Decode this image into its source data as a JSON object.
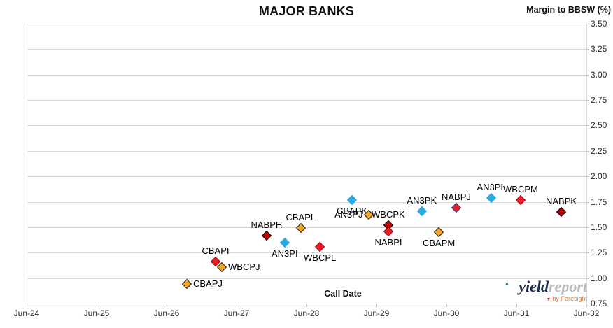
{
  "title": "MAJOR BANKS",
  "y_axis_title": "Margin to BBSW (%)",
  "x_axis_title": "Call Date",
  "logo": {
    "word_primary": "yield",
    "word_secondary": "report",
    "tagline": "by Foresight",
    "up_triangle": "▲",
    "down_triangle": "▼"
  },
  "chart_data": {
    "type": "scatter",
    "title": "MAJOR BANKS",
    "xlabel": "Call Date",
    "ylabel": "Margin to BBSW (%)",
    "x_tick_labels": [
      "Jun-24",
      "Jun-25",
      "Jun-26",
      "Jun-27",
      "Jun-28",
      "Jun-29",
      "Jun-30",
      "Jun-31",
      "Jun-32"
    ],
    "y_tick_labels": [
      "3.50",
      "3.25",
      "3.00",
      "2.75",
      "2.50",
      "2.25",
      "2.00",
      "1.75",
      "1.50",
      "1.25",
      "1.00",
      "0.75"
    ],
    "ylim": [
      0.75,
      3.5
    ],
    "x_years_after_jun24_range": [
      0,
      8
    ],
    "grid": "horizontal-only",
    "legend": "none",
    "marker": "diamond",
    "points": [
      {
        "label": "CBAPJ",
        "x_years_after_jun24": 2.29,
        "y": 0.94,
        "fill": "#f5a623",
        "stroke": "#1c1c1c",
        "label_pos": "right"
      },
      {
        "label": "CBAPI",
        "x_years_after_jun24": 2.7,
        "y": 1.16,
        "fill": "#ec1c24",
        "stroke": "#9e0b0f",
        "label_pos": "above"
      },
      {
        "label": "WBCPJ",
        "x_years_after_jun24": 2.79,
        "y": 1.11,
        "fill": "#f5a623",
        "stroke": "#1c1c1c",
        "label_pos": "right"
      },
      {
        "label": "NABPH",
        "x_years_after_jun24": 3.43,
        "y": 1.42,
        "fill": "#c00000",
        "stroke": "#000000",
        "label_pos": "above"
      },
      {
        "label": "AN3PI",
        "x_years_after_jun24": 3.69,
        "y": 1.35,
        "fill": "#29abe2",
        "stroke": "#29abe2",
        "label_pos": "below"
      },
      {
        "label": "CBAPL",
        "x_years_after_jun24": 3.92,
        "y": 1.49,
        "fill": "#f5a623",
        "stroke": "#1c1c1c",
        "label_pos": "above"
      },
      {
        "label": "WBCPL",
        "x_years_after_jun24": 4.19,
        "y": 1.31,
        "fill": "#ec1c24",
        "stroke": "#9e0b0f",
        "label_pos": "below"
      },
      {
        "label": "CBAPK",
        "x_years_after_jun24": 4.65,
        "y": 1.77,
        "fill": "#29abe2",
        "stroke": "#29abe2",
        "label_pos": "below"
      },
      {
        "label": "AN3PJ",
        "x_years_after_jun24": 4.89,
        "y": 1.62,
        "fill": "#f5a623",
        "stroke": "#1c1c1c",
        "label_pos": "left"
      },
      {
        "label": "WBCPK",
        "x_years_after_jun24": 5.17,
        "y": 1.52,
        "fill": "#c00000",
        "stroke": "#000000",
        "label_pos": "above"
      },
      {
        "label": "NABPI",
        "x_years_after_jun24": 5.17,
        "y": 1.46,
        "fill": "#ec1c24",
        "stroke": "#9e0b0f",
        "label_pos": "below"
      },
      {
        "label": "AN3PK",
        "x_years_after_jun24": 5.65,
        "y": 1.66,
        "fill": "#29abe2",
        "stroke": "#29abe2",
        "label_pos": "above"
      },
      {
        "label": "CBAPM",
        "x_years_after_jun24": 5.89,
        "y": 1.45,
        "fill": "#f5a623",
        "stroke": "#1c1c1c",
        "label_pos": "below"
      },
      {
        "label": "NABPJ",
        "x_years_after_jun24": 6.14,
        "y": 1.69,
        "fill": "#ec1c24",
        "stroke": "#26428b",
        "label_pos": "above"
      },
      {
        "label": "AN3PL",
        "x_years_after_jun24": 6.64,
        "y": 1.79,
        "fill": "#29abe2",
        "stroke": "#29abe2",
        "label_pos": "above"
      },
      {
        "label": "WBCPM",
        "x_years_after_jun24": 7.06,
        "y": 1.77,
        "fill": "#ec1c24",
        "stroke": "#9e0b0f",
        "label_pos": "above"
      },
      {
        "label": "NABPK",
        "x_years_after_jun24": 7.64,
        "y": 1.65,
        "fill": "#c00000",
        "stroke": "#000000",
        "label_pos": "above"
      }
    ],
    "style_colors": {
      "gold": "#f5a623",
      "red": "#ec1c24",
      "dark_red": "#c00000",
      "light_blue": "#29abe2",
      "navy_outline": "#26428b",
      "gridline": "#d9d9d9"
    }
  }
}
